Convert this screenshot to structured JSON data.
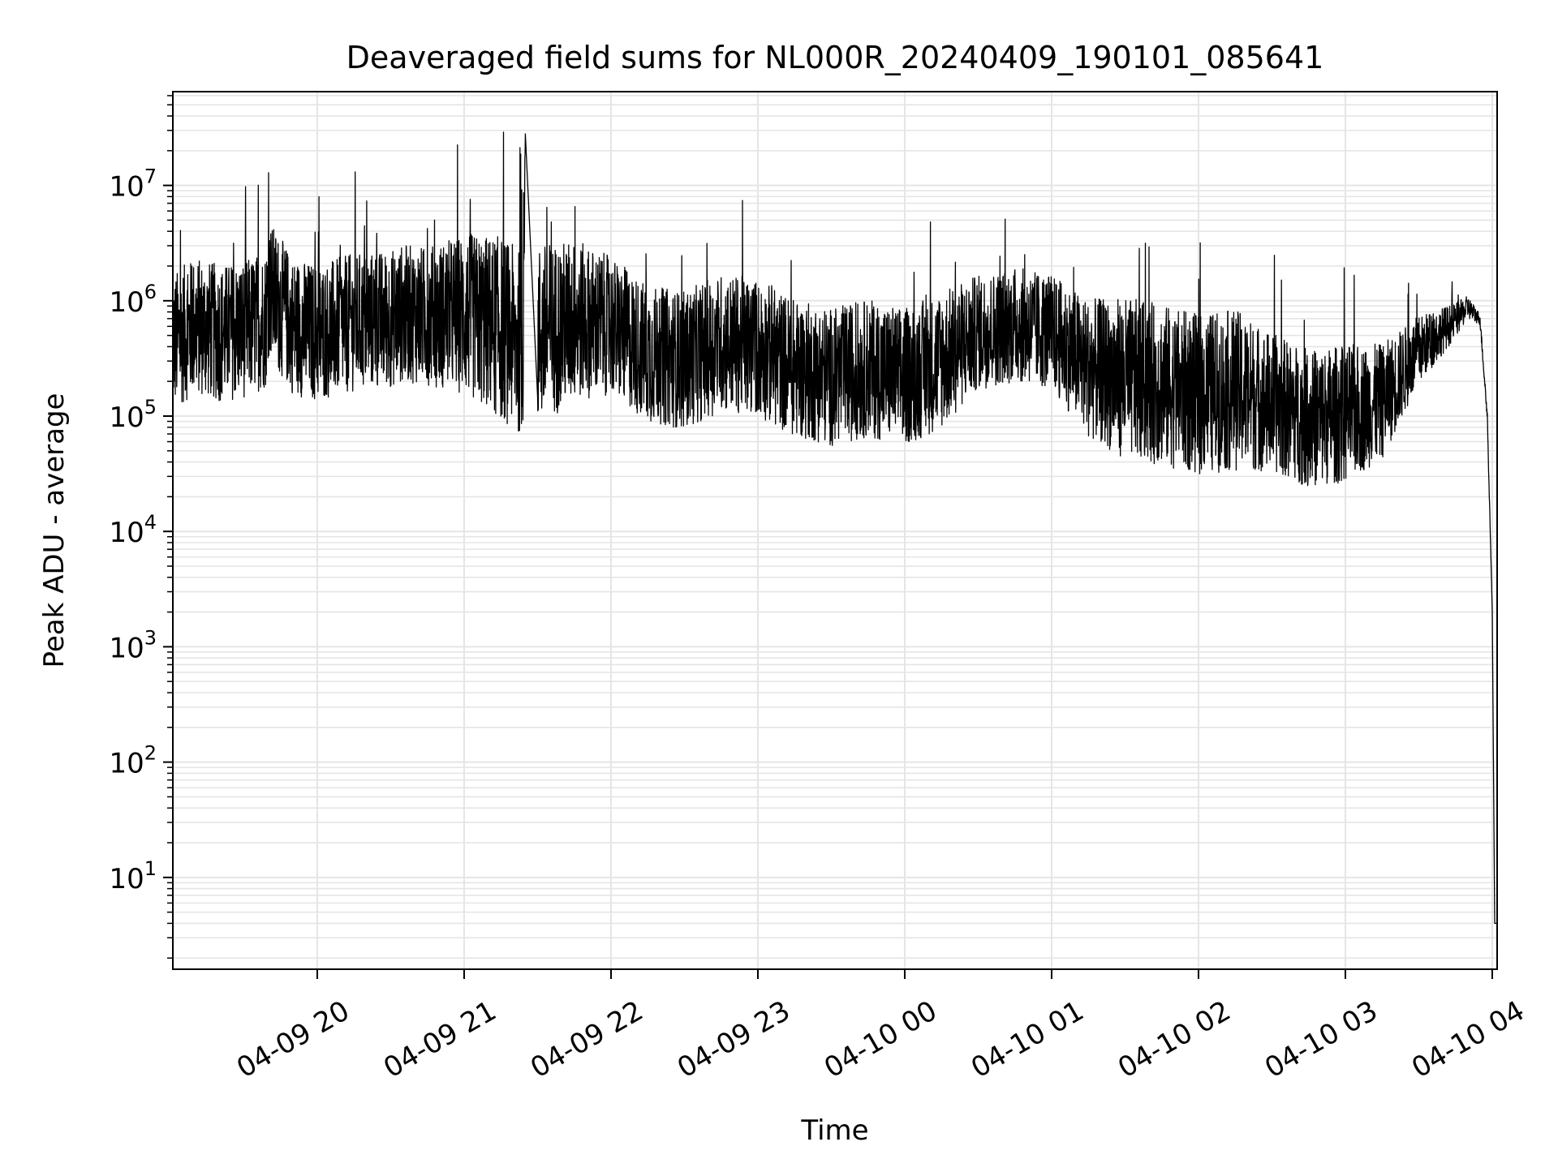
{
  "chart_data": {
    "type": "line",
    "title": "Deaveraged field sums for NL000R_20240409_190101_085641",
    "xlabel": "Time",
    "ylabel": "Peak ADU - average",
    "yscale": "log",
    "ylim": [
      1.6,
      65000000
    ],
    "xlim": [
      "2024-04-09 19:01:00",
      "2024-04-10 04:02:00"
    ],
    "grid": true,
    "legend": "none",
    "line_color": "#000000",
    "x_ticks": [
      "04-09 20",
      "04-09 21",
      "04-09 22",
      "04-09 23",
      "04-10 00",
      "04-10 01",
      "04-10 02",
      "04-10 03",
      "04-10 04"
    ],
    "y_ticks": [
      {
        "base": "10",
        "exp": "1"
      },
      {
        "base": "10",
        "exp": "2"
      },
      {
        "base": "10",
        "exp": "3"
      },
      {
        "base": "10",
        "exp": "4"
      },
      {
        "base": "10",
        "exp": "5"
      },
      {
        "base": "10",
        "exp": "6"
      },
      {
        "base": "10",
        "exp": "7"
      }
    ],
    "series": [
      {
        "x": [
          "2024-04-09 19:01",
          "2024-04-09 19:10",
          "2024-04-09 19:20",
          "2024-04-09 19:30",
          "2024-04-09 19:39",
          "2024-04-09 19:40",
          "2024-04-09 19:50",
          "2024-04-09 20:00",
          "2024-04-09 20:15",
          "2024-04-09 20:30",
          "2024-04-09 20:35",
          "2024-04-09 20:45",
          "2024-04-09 21:00",
          "2024-04-09 21:15",
          "2024-04-09 21:24",
          "2024-04-09 21:25",
          "2024-04-09 21:30",
          "2024-04-09 21:45",
          "2024-04-09 22:00",
          "2024-04-09 22:15",
          "2024-04-09 22:30",
          "2024-04-09 22:45",
          "2024-04-09 23:00",
          "2024-04-09 23:15",
          "2024-04-09 23:30",
          "2024-04-09 23:45",
          "2024-04-10 00:00",
          "2024-04-10 00:15",
          "2024-04-10 00:30",
          "2024-04-10 00:45",
          "2024-04-10 01:00",
          "2024-04-10 01:15",
          "2024-04-10 01:30",
          "2024-04-10 01:45",
          "2024-04-10 02:00",
          "2024-04-10 02:15",
          "2024-04-10 02:30",
          "2024-04-10 02:45",
          "2024-04-10 03:00",
          "2024-04-10 03:15",
          "2024-04-10 03:30",
          "2024-04-10 03:45",
          "2024-04-10 03:50",
          "2024-04-10 03:55",
          "2024-04-10 03:58",
          "2024-04-10 04:00",
          "2024-04-10 04:01",
          "2024-04-10 04:02"
        ],
        "y": [
          500000,
          700000,
          600000,
          650000,
          800000,
          1500000,
          700000,
          600000,
          750000,
          800000,
          900000,
          850000,
          900000,
          700000,
          500000,
          28000000,
          600000,
          800000,
          700000,
          400000,
          350000,
          500000,
          450000,
          300000,
          250000,
          300000,
          250000,
          350000,
          600000,
          700000,
          600000,
          300000,
          250000,
          220000,
          180000,
          200000,
          150000,
          110000,
          120000,
          150000,
          400000,
          700000,
          900000,
          700000,
          100000,
          2000,
          4,
          4
        ],
        "noise_amplitude_decades": [
          0.6,
          0.6,
          0.6,
          0.6,
          0.6,
          0.6,
          0.6,
          0.6,
          0.6,
          0.6,
          0.6,
          0.6,
          0.7,
          0.8,
          0.8,
          0.0,
          0.8,
          0.7,
          0.6,
          0.6,
          0.6,
          0.6,
          0.6,
          0.6,
          0.6,
          0.6,
          0.6,
          0.6,
          0.5,
          0.5,
          0.5,
          0.6,
          0.7,
          0.7,
          0.7,
          0.7,
          0.6,
          0.6,
          0.6,
          0.5,
          0.3,
          0.15,
          0.1,
          0.05,
          0.05,
          0.0,
          0.0,
          0.0
        ]
      }
    ]
  }
}
